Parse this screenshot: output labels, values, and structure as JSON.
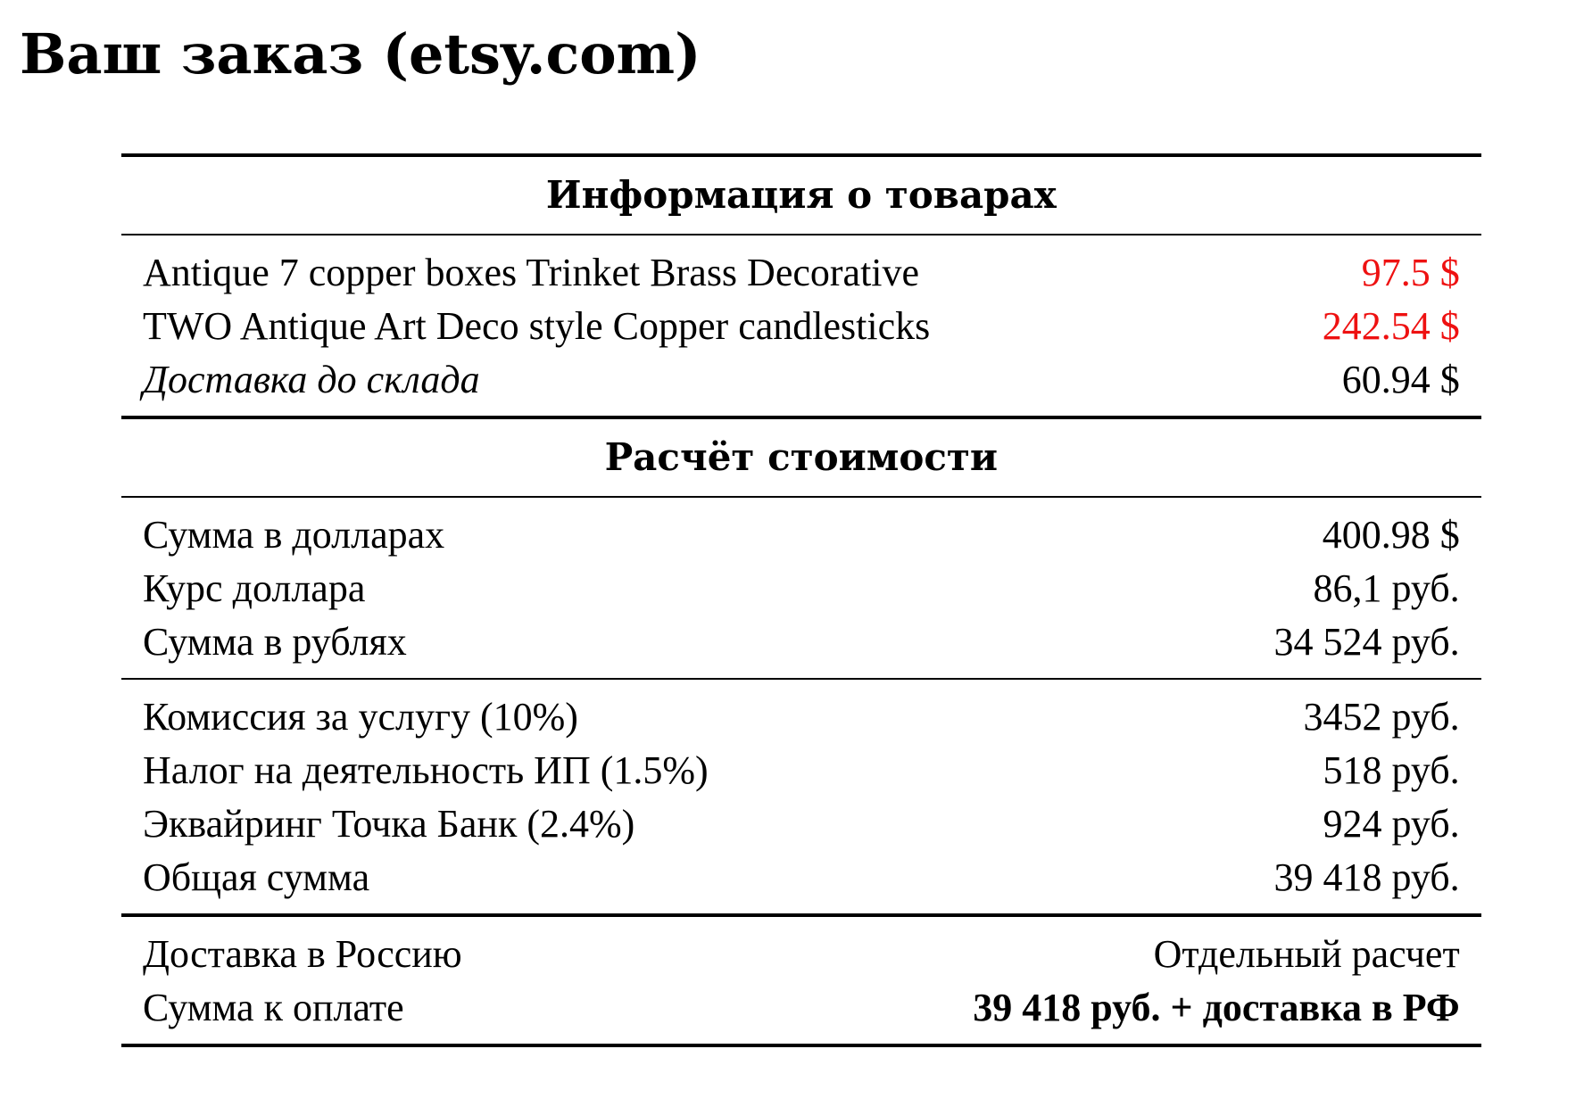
{
  "page": {
    "title": "Ваш заказ (etsy.com)"
  },
  "colors": {
    "price_accent": "#ee1111",
    "text": "#000000",
    "background": "#ffffff"
  },
  "goods_section": {
    "heading": "Информация о товарах",
    "items": [
      {
        "label": "Antique 7 copper boxes Trinket Brass Decorative",
        "value": "97.5 $"
      },
      {
        "label": "TWO Antique Art Deco style Copper candlesticks",
        "value": "242.54 $"
      }
    ],
    "shipping_to_warehouse": {
      "label": "Доставка до склада",
      "value": "60.94 $"
    }
  },
  "cost_section": {
    "heading": "Расчёт стоимости",
    "conversion": [
      {
        "label": "Сумма в долларах",
        "value": "400.98 $"
      },
      {
        "label": "Курс доллара",
        "value": "86,1 руб."
      },
      {
        "label": "Сумма в рублях",
        "value": "34 524 руб."
      }
    ],
    "fees": [
      {
        "label": "Комиссия за услугу (10%)",
        "value": "3452 руб."
      },
      {
        "label": "Налог на деятельность ИП (1.5%)",
        "value": "518 руб."
      },
      {
        "label": "Эквайринг Точка Банк (2.4%)",
        "value": "924 руб."
      },
      {
        "label": "Общая сумма",
        "value": "39 418 руб."
      }
    ],
    "final": [
      {
        "label": "Доставка в Россию",
        "value": "Отдельный расчет"
      },
      {
        "label": "Сумма к оплате",
        "value": "39 418 руб. + доставка в РФ"
      }
    ]
  }
}
